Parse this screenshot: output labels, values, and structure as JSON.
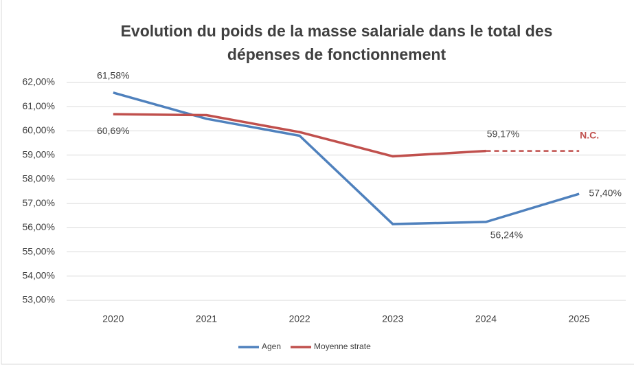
{
  "chart_data": {
    "type": "line",
    "title": "Evolution du poids de la masse salariale dans le total des dépenses de fonctionnement",
    "categories": [
      "2020",
      "2021",
      "2022",
      "2023",
      "2024",
      "2025"
    ],
    "series": [
      {
        "name": "Agen",
        "color": "#4f81bd",
        "values": [
          61.58,
          60.5,
          59.8,
          56.15,
          56.24,
          57.4
        ],
        "value_labels": [
          "61,58%",
          null,
          null,
          null,
          "56,24%",
          "57,40%"
        ]
      },
      {
        "name": "Moyenne strate",
        "color": "#c0504d",
        "values": [
          60.69,
          60.65,
          59.95,
          58.95,
          59.17,
          null
        ],
        "value_labels": [
          "60,69%",
          null,
          null,
          null,
          "59,17%",
          null
        ]
      }
    ],
    "annotations": [
      "N.C."
    ],
    "ylim": [
      53,
      62
    ],
    "yticks": [
      {
        "value": 53,
        "label": "53,00%"
      },
      {
        "value": 54,
        "label": "54,00%"
      },
      {
        "value": 55,
        "label": "55,00%"
      },
      {
        "value": 56,
        "label": "56,00%"
      },
      {
        "value": 57,
        "label": "57,00%"
      },
      {
        "value": 58,
        "label": "58,00%"
      },
      {
        "value": 59,
        "label": "59,00%"
      },
      {
        "value": 60,
        "label": "60,00%"
      },
      {
        "value": 61,
        "label": "61,00%"
      },
      {
        "value": 62,
        "label": "62,00%"
      }
    ],
    "grid": true,
    "legend": "bottom"
  }
}
